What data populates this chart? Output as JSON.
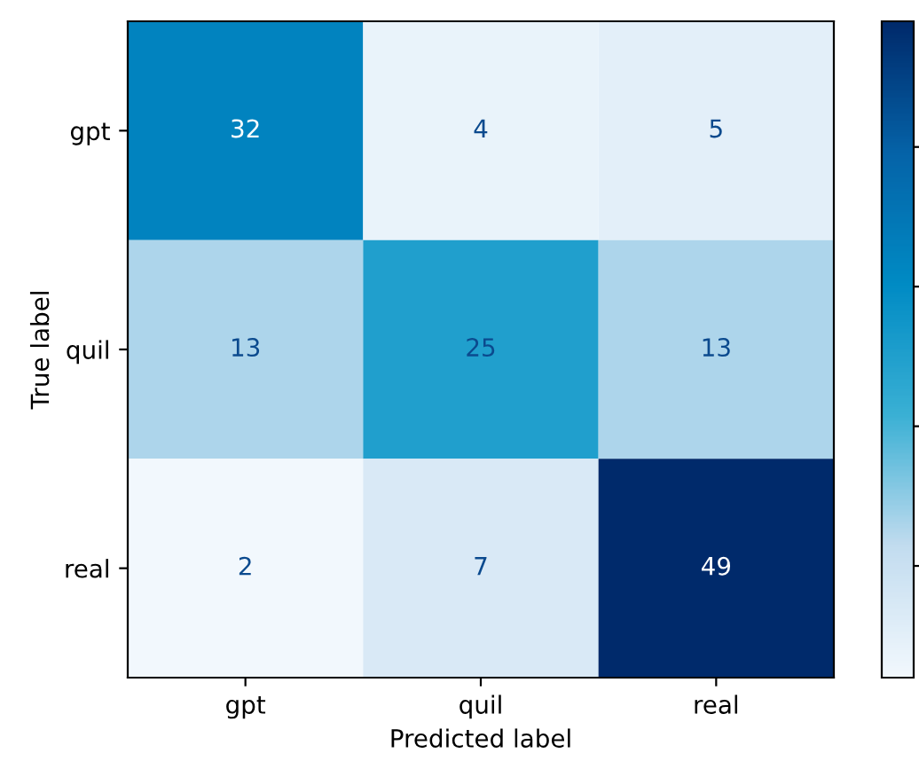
{
  "chart_data": {
    "type": "heatmap",
    "xlabel": "Predicted label",
    "ylabel": "True label",
    "categories": [
      "gpt",
      "quil",
      "real"
    ],
    "y_categories": [
      "gpt",
      "quil",
      "real"
    ],
    "cells": [
      [
        32,
        4,
        5
      ],
      [
        13,
        25,
        13
      ],
      [
        2,
        7,
        49
      ]
    ],
    "data_labels": true
  }
}
